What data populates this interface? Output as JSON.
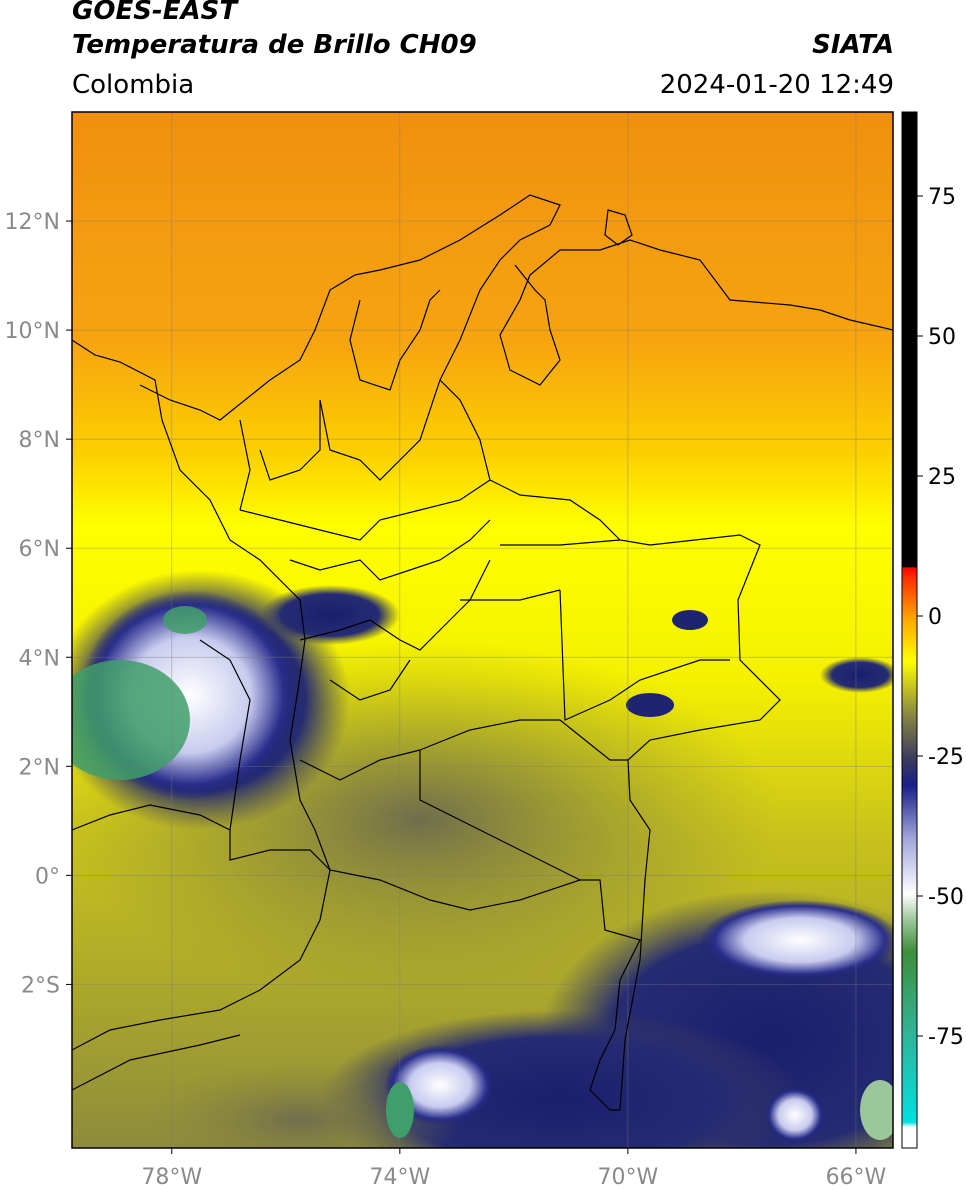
{
  "header": {
    "satellite": "GOES-EAST",
    "product": "Temperatura de Brillo CH09",
    "region": "Colombia",
    "agency": "SIATA",
    "datetime": "2024-01-20 12:49"
  },
  "map": {
    "lon_range": [
      -79.75,
      -65.35
    ],
    "lat_range": [
      -5.0,
      14.0
    ],
    "lat_ticks": [
      {
        "value": 12,
        "label": "12°N"
      },
      {
        "value": 10,
        "label": "10°N"
      },
      {
        "value": 8,
        "label": "8°N"
      },
      {
        "value": 6,
        "label": "6°N"
      },
      {
        "value": 4,
        "label": "4°N"
      },
      {
        "value": 2,
        "label": "2°N"
      },
      {
        "value": 0,
        "label": "0°"
      },
      {
        "value": -2,
        "label": "2°S"
      }
    ],
    "lon_ticks": [
      {
        "value": -78,
        "label": "78°W"
      },
      {
        "value": -74,
        "label": "74°W"
      },
      {
        "value": -70,
        "label": "70°W"
      },
      {
        "value": -66,
        "label": "66°W"
      }
    ],
    "grid": true,
    "colors": {
      "warm_north": "#f59a10",
      "mid": "#ffff00",
      "olive": "#8d8c40",
      "cold_dark": "#1e2470",
      "coldest": "#f2f4ff",
      "green": "#3f9f6a",
      "border": "#000000"
    }
  },
  "colorbar": {
    "range": [
      -95,
      90
    ],
    "ticks": [
      {
        "value": 75,
        "label": "75"
      },
      {
        "value": 50,
        "label": "50"
      },
      {
        "value": 25,
        "label": "25"
      },
      {
        "value": 0,
        "label": "0"
      },
      {
        "value": -25,
        "label": "-25"
      },
      {
        "value": -50,
        "label": "-50"
      },
      {
        "value": -75,
        "label": "-75"
      }
    ]
  }
}
